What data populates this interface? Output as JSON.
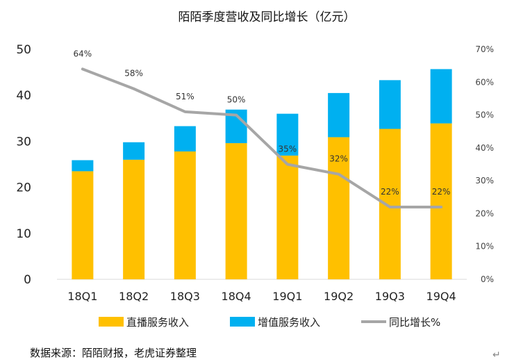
{
  "chart_data": {
    "type": "bar",
    "stacked": true,
    "title": "陌陌季度营收及同比增长（亿元）",
    "categories": [
      "18Q1",
      "18Q2",
      "18Q3",
      "18Q4",
      "19Q1",
      "19Q2",
      "19Q3",
      "19Q4"
    ],
    "series": [
      {
        "name": "直播服务收入",
        "type": "bar",
        "color": "#FFC000",
        "axis": "left",
        "values": [
          23.5,
          26.0,
          27.8,
          29.6,
          26.9,
          30.9,
          32.7,
          33.9
        ]
      },
      {
        "name": "增值服务收入",
        "type": "bar",
        "color": "#00B0F0",
        "axis": "left",
        "values": [
          2.4,
          3.8,
          5.5,
          7.3,
          9.1,
          9.6,
          10.6,
          11.8
        ]
      },
      {
        "name": "同比增长%",
        "type": "line",
        "color": "#A6A6A6",
        "axis": "right",
        "values": [
          64,
          58,
          51,
          50,
          35,
          32,
          22,
          22
        ],
        "labels": [
          "64%",
          "58%",
          "51%",
          "50%",
          "35%",
          "32%",
          "22%",
          "22%"
        ]
      }
    ],
    "left_axis": {
      "min": 0,
      "max": 50,
      "ticks": [
        "0",
        "10",
        "20",
        "30",
        "40",
        "50"
      ]
    },
    "right_axis": {
      "min": 0,
      "max": 70,
      "ticks": [
        "0%",
        "10%",
        "20%",
        "30%",
        "40%",
        "50%",
        "60%",
        "70%"
      ]
    },
    "grid": false,
    "legend": "bottom"
  },
  "footer": {
    "source": "数据来源：陌陌财报，老虎证券整理",
    "corner_mark": "↵"
  }
}
